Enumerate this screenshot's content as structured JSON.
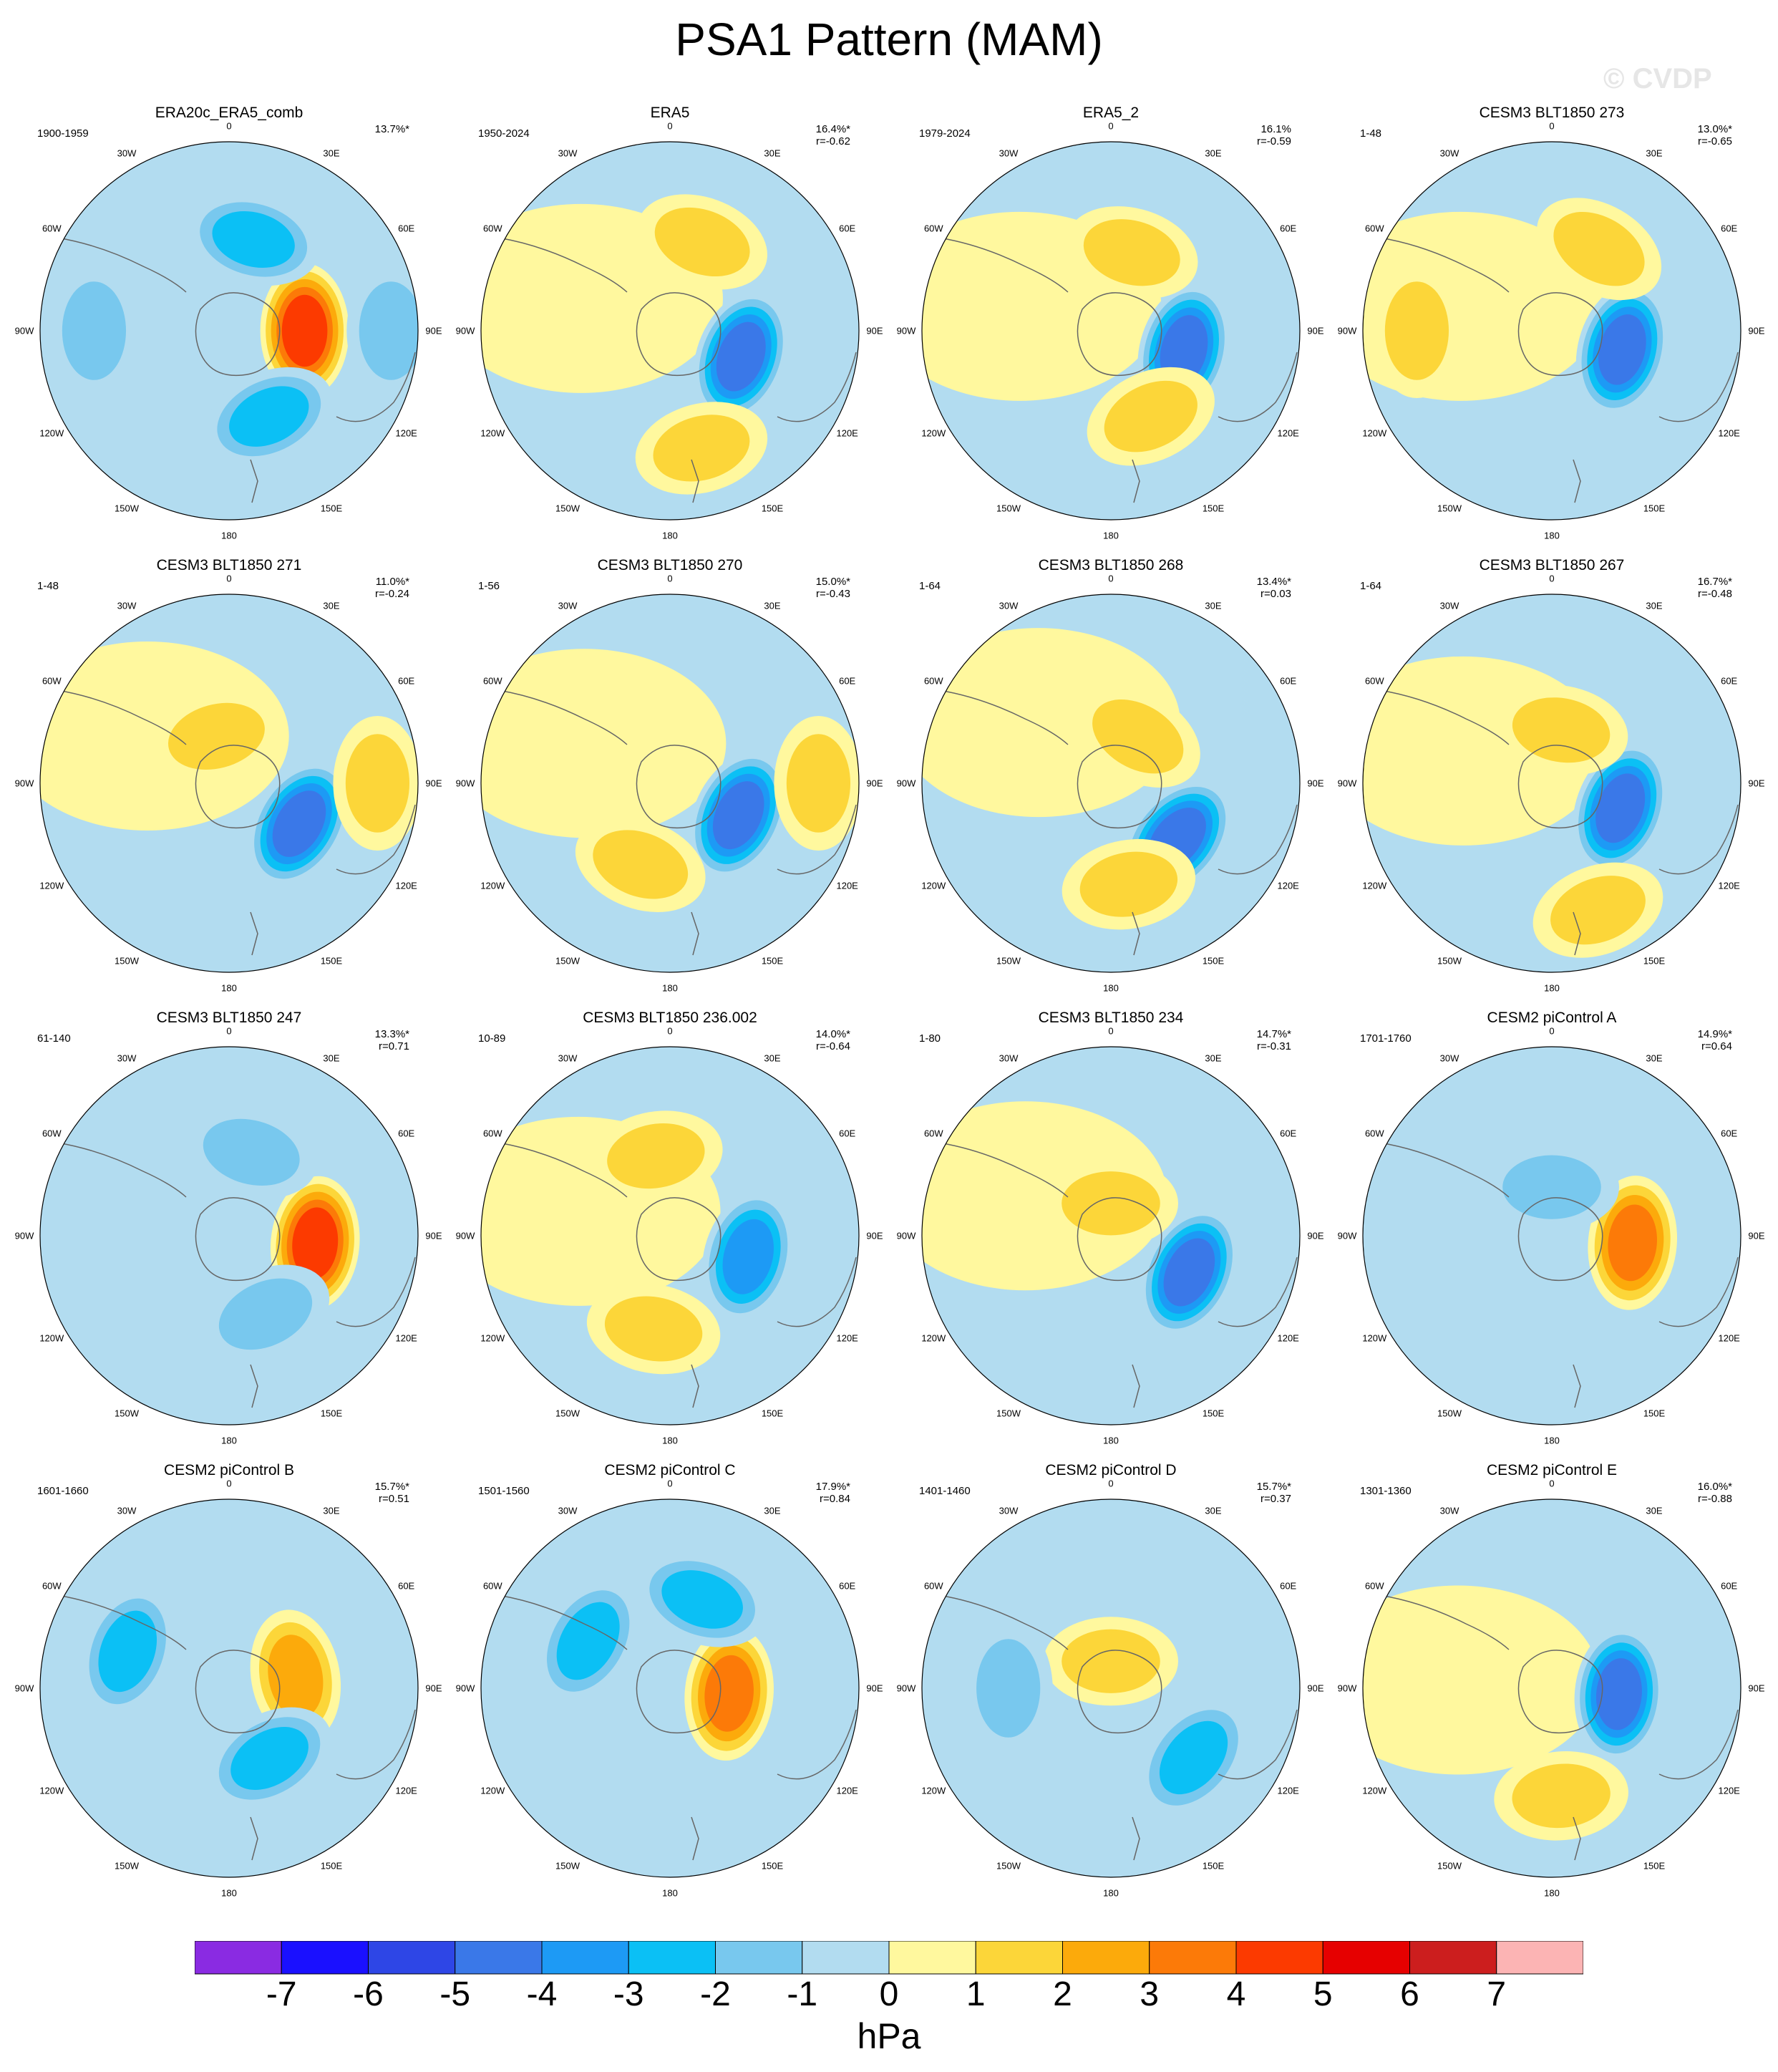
{
  "title": "PSA1 Pattern (MAM)",
  "watermark": "© CVDP",
  "lon_labels": [
    "0",
    "30E",
    "60E",
    "90E",
    "120E",
    "150E",
    "180",
    "150W",
    "120W",
    "90W",
    "60W",
    "30W"
  ],
  "colors": {
    "ocean_neg1": "#b2dcf0",
    "land_line": "#666666"
  },
  "chart_data": {
    "type": "heatmap",
    "projection": "south-polar stereographic",
    "units": "hPa",
    "colorbar": {
      "ticks": [
        "-7",
        "-6",
        "-5",
        "-4",
        "-3",
        "-2",
        "-1",
        "0",
        "1",
        "2",
        "3",
        "4",
        "5",
        "6",
        "7"
      ],
      "colors": [
        "#8a2be2",
        "#1a10ff",
        "#2e46e6",
        "#3a78e8",
        "#1d9af5",
        "#0bc0f5",
        "#78c8ee",
        "#b2dcf0",
        "#fff89e",
        "#fcd639",
        "#fcaa0b",
        "#fc7a08",
        "#fc3a00",
        "#e60000",
        "#cc1e1e",
        "#fcb4b4"
      ]
    },
    "panels": [
      {
        "title": "ERA20c_ERA5_comb",
        "period": "1900-1959",
        "pct": "13.7%*",
        "r": "",
        "anomalies": [
          {
            "lon": 90,
            "lat": -62,
            "val": 4.2
          },
          {
            "lon": 15,
            "lat": -55,
            "val": -3
          },
          {
            "lon": 155,
            "lat": -55,
            "val": -3
          },
          {
            "lon": 90,
            "lat": -30,
            "val": -1.5
          },
          {
            "lon": 270,
            "lat": -40,
            "val": -2
          }
        ]
      },
      {
        "title": "ERA5",
        "period": "1950-2024",
        "pct": "16.4%*",
        "r": "r=-0.62",
        "anomalies": [
          {
            "lon": 110,
            "lat": -62,
            "val": -4.5
          },
          {
            "lon": 20,
            "lat": -55,
            "val": 1.5
          },
          {
            "lon": 165,
            "lat": -45,
            "val": 1.5
          }
        ]
      },
      {
        "title": "ERA5_2",
        "period": "1979-2024",
        "pct": "16.1%",
        "r": "r=-0.59",
        "anomalies": [
          {
            "lon": 105,
            "lat": -62,
            "val": -4.6
          },
          {
            "lon": 15,
            "lat": -60,
            "val": 1.5
          },
          {
            "lon": 155,
            "lat": -55,
            "val": 1.5
          }
        ]
      },
      {
        "title": "CESM3 BLT1850 273",
        "period": "1-48",
        "pct": "13.0%*",
        "r": "r=-0.65",
        "anomalies": [
          {
            "lon": 105,
            "lat": -63,
            "val": -4.3
          },
          {
            "lon": 30,
            "lat": -55,
            "val": 1.3
          },
          {
            "lon": 270,
            "lat": -40,
            "val": 1.2
          }
        ]
      },
      {
        "title": "CESM3 BLT1850 271",
        "period": "1-48",
        "pct": "11.0%*",
        "r": "r=-0.24",
        "anomalies": [
          {
            "lon": 120,
            "lat": -60,
            "val": -4.4
          },
          {
            "lon": 345,
            "lat": -72,
            "val": 1.3
          },
          {
            "lon": 90,
            "lat": -35,
            "val": 1.2
          }
        ]
      },
      {
        "title": "CESM3 BLT1850 270",
        "period": "1-56",
        "pct": "15.0%*",
        "r": "r=-0.43",
        "anomalies": [
          {
            "lon": 115,
            "lat": -62,
            "val": -4.5
          },
          {
            "lon": 200,
            "lat": -58,
            "val": 1.5
          },
          {
            "lon": 90,
            "lat": -35,
            "val": 1.2
          }
        ]
      },
      {
        "title": "CESM3 BLT1850 268",
        "period": "1-64",
        "pct": "13.4%*",
        "r": "r=0.03",
        "anomalies": [
          {
            "lon": 130,
            "lat": -58,
            "val": -4.6
          },
          {
            "lon": 170,
            "lat": -52,
            "val": 1.3
          },
          {
            "lon": 30,
            "lat": -70,
            "val": 1.2
          }
        ]
      },
      {
        "title": "CESM3 BLT1850 267",
        "period": "1-64",
        "pct": "16.7%*",
        "r": "r=-0.48",
        "anomalies": [
          {
            "lon": 110,
            "lat": -63,
            "val": -4.2
          },
          {
            "lon": 10,
            "lat": -70,
            "val": 1.6
          },
          {
            "lon": 160,
            "lat": -40,
            "val": 1.2
          }
        ]
      },
      {
        "title": "CESM3 BLT1850 247",
        "period": "61-140",
        "pct": "13.3%*",
        "r": "r=0.71",
        "anomalies": [
          {
            "lon": 95,
            "lat": -58,
            "val": 4.2
          },
          {
            "lon": 15,
            "lat": -58,
            "val": -1.5
          },
          {
            "lon": 155,
            "lat": -58,
            "val": -1.8
          }
        ]
      },
      {
        "title": "CESM3 BLT1850 236.002",
        "period": "10-89",
        "pct": "14.0%*",
        "r": "r=-0.64",
        "anomalies": [
          {
            "lon": 105,
            "lat": -60,
            "val": -3.8
          },
          {
            "lon": 350,
            "lat": -60,
            "val": 1.5
          },
          {
            "lon": 190,
            "lat": -55,
            "val": 1.5
          }
        ]
      },
      {
        "title": "CESM3 BLT1850 234",
        "period": "1-80",
        "pct": "14.7%*",
        "r": "r=-0.31",
        "anomalies": [
          {
            "lon": 115,
            "lat": -58,
            "val": -4.7
          },
          {
            "lon": 0,
            "lat": -78,
            "val": 1.6
          }
        ]
      },
      {
        "title": "CESM2 piControl A",
        "period": "1701-1760",
        "pct": "14.9%*",
        "r": "r=0.64",
        "anomalies": [
          {
            "lon": 95,
            "lat": -60,
            "val": 3.5
          },
          {
            "lon": 0,
            "lat": -72,
            "val": -1.8
          }
        ]
      },
      {
        "title": "CESM2 piControl B",
        "period": "1601-1660",
        "pct": "15.7%*",
        "r": "r=0.51",
        "anomalies": [
          {
            "lon": 80,
            "lat": -65,
            "val": 2.8
          },
          {
            "lon": 150,
            "lat": -60,
            "val": -3
          },
          {
            "lon": 290,
            "lat": -50,
            "val": -2.5
          }
        ]
      },
      {
        "title": "CESM2 piControl C",
        "period": "1501-1560",
        "pct": "17.9%*",
        "r": "r=0.84",
        "anomalies": [
          {
            "lon": 95,
            "lat": -68,
            "val": 3.8
          },
          {
            "lon": 20,
            "lat": -55,
            "val": -3
          },
          {
            "lon": 300,
            "lat": -55,
            "val": -2.5
          }
        ]
      },
      {
        "title": "CESM2 piControl D",
        "period": "1401-1460",
        "pct": "15.7%*",
        "r": "r=0.37",
        "anomalies": [
          {
            "lon": 0,
            "lat": -80,
            "val": 2
          },
          {
            "lon": 130,
            "lat": -50,
            "val": -3
          },
          {
            "lon": 270,
            "lat": -52,
            "val": -1.8
          }
        ]
      },
      {
        "title": "CESM2 piControl E",
        "period": "1301-1360",
        "pct": "16.0%*",
        "r": "r=-0.88",
        "anomalies": [
          {
            "lon": 95,
            "lat": -65,
            "val": -4.1
          },
          {
            "lon": 175,
            "lat": -50,
            "val": 1.5
          }
        ]
      }
    ]
  }
}
